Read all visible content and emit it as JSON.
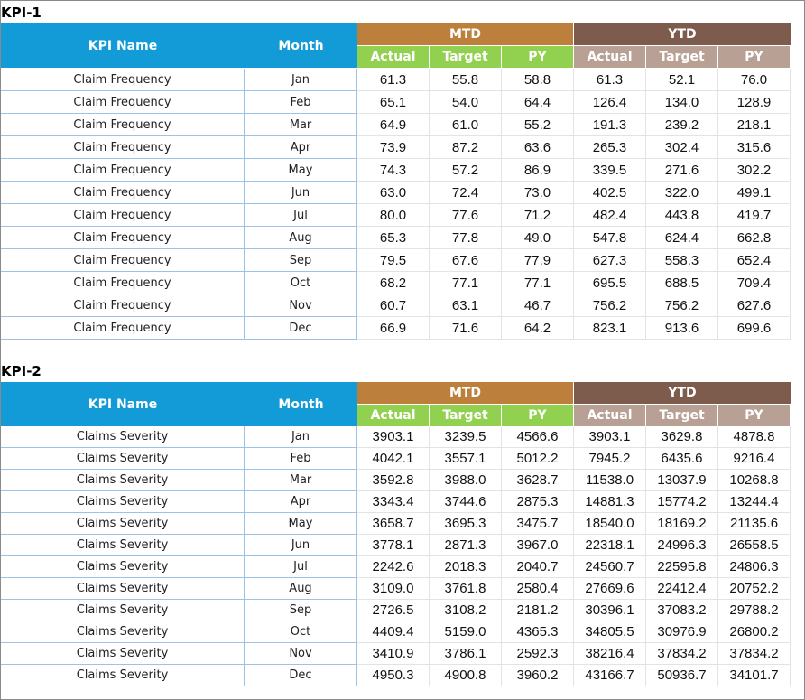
{
  "tables": [
    {
      "title": "KPI-1",
      "kpi_name_header": "KPI Name",
      "month_header": "Month",
      "groups": [
        "MTD",
        "YTD"
      ],
      "subheaders": [
        "Actual",
        "Target",
        "PY",
        "Actual",
        "Target",
        "PY"
      ],
      "rows": [
        [
          "Claim Frequency",
          "Jan",
          "61.3",
          "55.8",
          "58.8",
          "61.3",
          "52.1",
          "76.0"
        ],
        [
          "Claim Frequency",
          "Feb",
          "65.1",
          "54.0",
          "64.4",
          "126.4",
          "134.0",
          "128.9"
        ],
        [
          "Claim Frequency",
          "Mar",
          "64.9",
          "61.0",
          "55.2",
          "191.3",
          "239.2",
          "218.1"
        ],
        [
          "Claim Frequency",
          "Apr",
          "73.9",
          "87.2",
          "63.6",
          "265.3",
          "302.4",
          "315.6"
        ],
        [
          "Claim Frequency",
          "May",
          "74.3",
          "57.2",
          "86.9",
          "339.5",
          "271.6",
          "302.2"
        ],
        [
          "Claim Frequency",
          "Jun",
          "63.0",
          "72.4",
          "73.0",
          "402.5",
          "322.0",
          "499.1"
        ],
        [
          "Claim Frequency",
          "Jul",
          "80.0",
          "77.6",
          "71.2",
          "482.4",
          "443.8",
          "419.7"
        ],
        [
          "Claim Frequency",
          "Aug",
          "65.3",
          "77.8",
          "49.0",
          "547.8",
          "624.4",
          "662.8"
        ],
        [
          "Claim Frequency",
          "Sep",
          "79.5",
          "67.6",
          "77.9",
          "627.3",
          "558.3",
          "652.4"
        ],
        [
          "Claim Frequency",
          "Oct",
          "68.2",
          "77.1",
          "77.1",
          "695.5",
          "688.5",
          "709.4"
        ],
        [
          "Claim Frequency",
          "Nov",
          "60.7",
          "63.1",
          "46.7",
          "756.2",
          "756.2",
          "627.6"
        ],
        [
          "Claim Frequency",
          "Dec",
          "66.9",
          "71.6",
          "64.2",
          "823.1",
          "913.6",
          "699.6"
        ]
      ]
    },
    {
      "title": "KPI-2",
      "kpi_name_header": "KPI Name",
      "month_header": "Month",
      "groups": [
        "MTD",
        "YTD"
      ],
      "subheaders": [
        "Actual",
        "Target",
        "PY",
        "Actual",
        "Target",
        "PY"
      ],
      "rows": [
        [
          "Claims Severity",
          "Jan",
          "3903.1",
          "3239.5",
          "4566.6",
          "3903.1",
          "3629.8",
          "4878.8"
        ],
        [
          "Claims Severity",
          "Feb",
          "4042.1",
          "3557.1",
          "5012.2",
          "7945.2",
          "6435.6",
          "9216.4"
        ],
        [
          "Claims Severity",
          "Mar",
          "3592.8",
          "3988.0",
          "3628.7",
          "11538.0",
          "13037.9",
          "10268.8"
        ],
        [
          "Claims Severity",
          "Apr",
          "3343.4",
          "3744.6",
          "2875.3",
          "14881.3",
          "15774.2",
          "13244.4"
        ],
        [
          "Claims Severity",
          "May",
          "3658.7",
          "3695.3",
          "3475.7",
          "18540.0",
          "18169.2",
          "21135.6"
        ],
        [
          "Claims Severity",
          "Jun",
          "3778.1",
          "2871.3",
          "3967.0",
          "22318.1",
          "24996.3",
          "26558.5"
        ],
        [
          "Claims Severity",
          "Jul",
          "2242.6",
          "2018.3",
          "2040.7",
          "24560.7",
          "22595.8",
          "24806.3"
        ],
        [
          "Claims Severity",
          "Aug",
          "3109.0",
          "3761.8",
          "2580.4",
          "27669.6",
          "22412.4",
          "20752.2"
        ],
        [
          "Claims Severity",
          "Sep",
          "2726.5",
          "3108.2",
          "2181.2",
          "30396.1",
          "37083.2",
          "29788.2"
        ],
        [
          "Claims Severity",
          "Oct",
          "4409.4",
          "5159.0",
          "4365.3",
          "34805.5",
          "30976.9",
          "26800.2"
        ],
        [
          "Claims Severity",
          "Nov",
          "3410.9",
          "3786.1",
          "2592.3",
          "38216.4",
          "37834.2",
          "37834.2"
        ],
        [
          "Claims Severity",
          "Dec",
          "4950.3",
          "4900.8",
          "3960.2",
          "43166.7",
          "50936.7",
          "34101.7"
        ]
      ]
    }
  ]
}
